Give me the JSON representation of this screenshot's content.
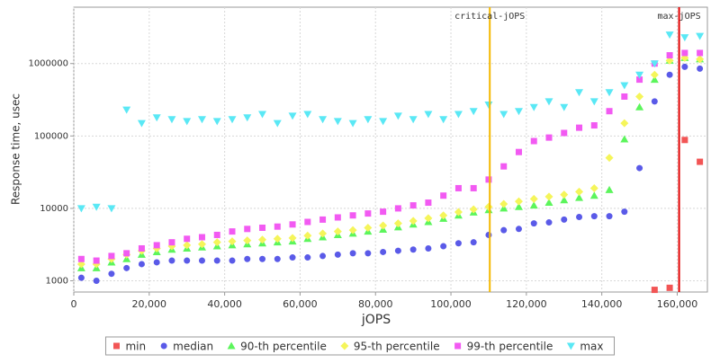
{
  "chart_data": {
    "type": "scatter",
    "xlabel": "jOPS",
    "ylabel": "Response time, usec",
    "log_y": true,
    "grid": true,
    "legend": "bottom",
    "xlim": [
      0,
      168000
    ],
    "xticks": [
      0,
      {
        "value": 20000,
        "label": "20,000"
      },
      {
        "value": 40000,
        "label": "40,000"
      },
      {
        "value": 60000,
        "label": "60,000"
      },
      {
        "value": 80000,
        "label": "80,000"
      },
      {
        "value": 100000,
        "label": "100,000"
      },
      {
        "value": 120000,
        "label": "120,000"
      },
      {
        "value": 140000,
        "label": "140,000"
      },
      {
        "value": 160000,
        "label": "160,000"
      }
    ],
    "ylim": [
      700,
      6000000
    ],
    "yticks": [
      1000,
      10000,
      100000,
      1000000
    ],
    "annotations": [
      {
        "text": "critical-jOPS",
        "x": 110300,
        "color": "#f5b800"
      },
      {
        "text": "max-jOPS",
        "x": 160500,
        "color": "#e00000"
      }
    ],
    "x": [
      2000,
      6000,
      10000,
      14000,
      18000,
      22000,
      26000,
      30000,
      34000,
      38000,
      42000,
      46000,
      50000,
      54000,
      58000,
      62000,
      66000,
      70000,
      74000,
      78000,
      82000,
      86000,
      90000,
      94000,
      98000,
      102000,
      106000,
      110000,
      114000,
      118000,
      122000,
      126000,
      130000,
      134000,
      138000,
      142000,
      146000,
      150000,
      154000,
      158000,
      162000,
      166000
    ],
    "series": [
      {
        "name": "min",
        "color": "#f25555",
        "marker": "square",
        "values": [
          null,
          null,
          null,
          null,
          null,
          null,
          null,
          null,
          null,
          null,
          null,
          null,
          null,
          null,
          null,
          null,
          null,
          null,
          null,
          null,
          null,
          null,
          null,
          null,
          null,
          null,
          null,
          null,
          null,
          null,
          null,
          null,
          null,
          null,
          null,
          null,
          null,
          null,
          750,
          800,
          88000,
          44000
        ]
      },
      {
        "name": "median",
        "color": "#5a5ae8",
        "marker": "circle",
        "values": [
          1100,
          1000,
          1250,
          1500,
          1700,
          1800,
          1900,
          1900,
          1900,
          1900,
          1900,
          2000,
          2000,
          2000,
          2100,
          2100,
          2200,
          2300,
          2400,
          2400,
          2500,
          2600,
          2700,
          2800,
          3000,
          3300,
          3400,
          4300,
          5000,
          5200,
          6200,
          6400,
          7000,
          7600,
          7800,
          7800,
          9000,
          36000,
          300000,
          700000,
          900000,
          850000
        ]
      },
      {
        "name": "90-th percentile",
        "color": "#5cf55c",
        "marker": "triangle-up",
        "values": [
          1500,
          1500,
          1800,
          2000,
          2300,
          2500,
          2700,
          2800,
          2900,
          3000,
          3100,
          3200,
          3300,
          3400,
          3500,
          3800,
          4000,
          4300,
          4500,
          4800,
          5100,
          5500,
          6000,
          6500,
          7200,
          8000,
          8800,
          9500,
          10000,
          10500,
          11000,
          12000,
          13000,
          14000,
          15000,
          18000,
          90000,
          250000,
          600000,
          1100000,
          1200000,
          1150000
        ]
      },
      {
        "name": "95-th percentile",
        "color": "#f5f55a",
        "marker": "diamond",
        "values": [
          1700,
          1700,
          2000,
          2300,
          2600,
          2800,
          3000,
          3100,
          3200,
          3400,
          3500,
          3600,
          3700,
          3800,
          3900,
          4200,
          4500,
          4800,
          5000,
          5400,
          5800,
          6200,
          6700,
          7300,
          8000,
          8900,
          9700,
          10500,
          11500,
          12500,
          13500,
          14500,
          15500,
          17000,
          19000,
          50000,
          150000,
          350000,
          700000,
          1100000,
          1200000,
          1150000
        ]
      },
      {
        "name": "99-th percentile",
        "color": "#f25af2",
        "marker": "square",
        "values": [
          2000,
          1900,
          2200,
          2400,
          2800,
          3100,
          3400,
          3800,
          4000,
          4300,
          4800,
          5200,
          5400,
          5600,
          6000,
          6500,
          7000,
          7500,
          8000,
          8500,
          9000,
          10000,
          11000,
          12000,
          15000,
          19000,
          19000,
          25000,
          38000,
          60000,
          85000,
          95000,
          110000,
          130000,
          140000,
          220000,
          350000,
          600000,
          1000000,
          1300000,
          1400000,
          1400000
        ]
      },
      {
        "name": "max",
        "color": "#5ae8f5",
        "marker": "triangle-down",
        "values": [
          10000,
          10500,
          10000,
          230000,
          150000,
          180000,
          170000,
          160000,
          170000,
          160000,
          170000,
          180000,
          200000,
          150000,
          190000,
          200000,
          170000,
          160000,
          150000,
          170000,
          160000,
          190000,
          170000,
          200000,
          170000,
          200000,
          220000,
          270000,
          200000,
          220000,
          250000,
          300000,
          250000,
          400000,
          300000,
          400000,
          500000,
          700000,
          1000000,
          2500000,
          2300000,
          2400000
        ]
      }
    ]
  }
}
